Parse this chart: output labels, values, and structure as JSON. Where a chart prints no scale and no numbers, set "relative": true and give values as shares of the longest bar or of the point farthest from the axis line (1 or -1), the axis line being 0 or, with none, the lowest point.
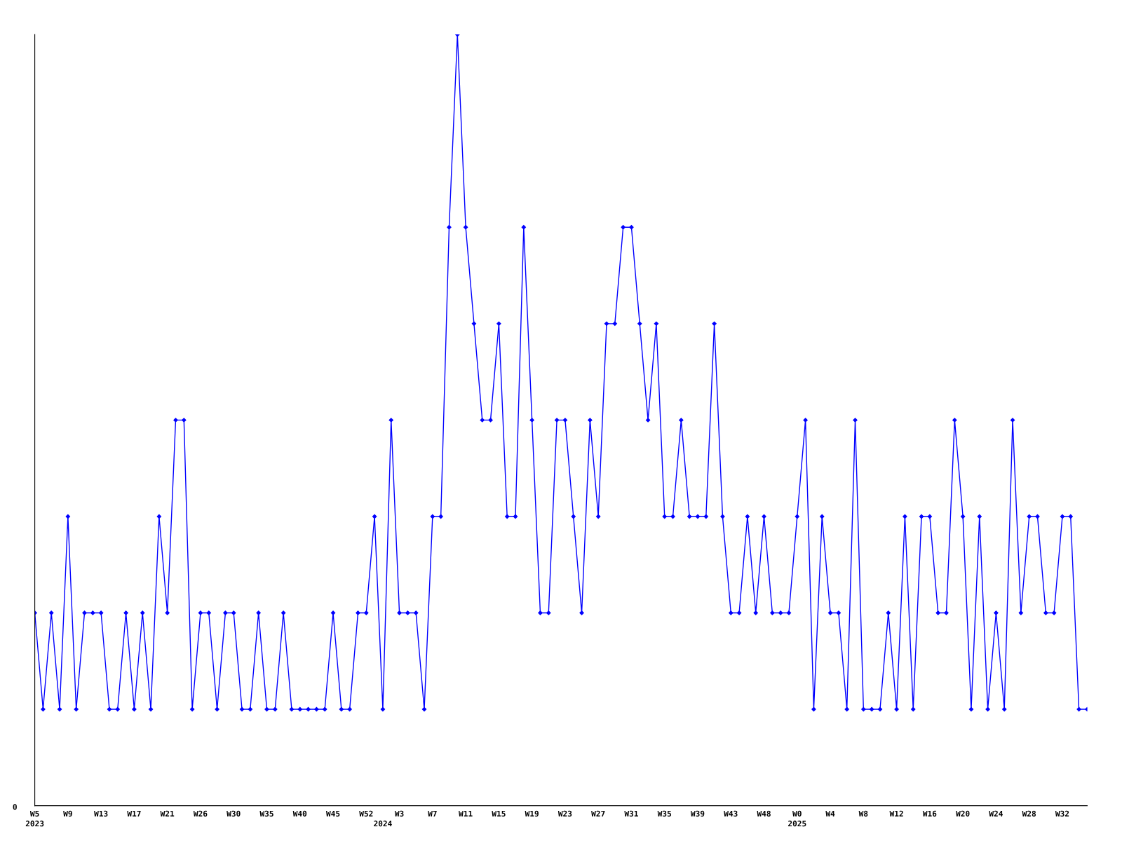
{
  "chart_data": {
    "type": "line",
    "relative": true,
    "color": "#0000ff",
    "marker": "diamond",
    "line_style": "solid",
    "grid": false,
    "legend": false,
    "annotations": [
      "0"
    ],
    "categories": [
      "W5\n2023",
      null,
      null,
      null,
      "W9",
      null,
      null,
      null,
      "W13",
      null,
      null,
      null,
      "W17",
      null,
      null,
      null,
      "W21",
      null,
      null,
      null,
      "W26",
      null,
      null,
      null,
      "W30",
      null,
      null,
      null,
      "W35",
      null,
      null,
      null,
      "W40",
      null,
      null,
      null,
      "W45",
      null,
      null,
      null,
      "W52",
      null,
      "\n2024",
      null,
      "W3",
      null,
      null,
      null,
      "W7",
      null,
      null,
      null,
      "W11",
      null,
      null,
      null,
      "W15",
      null,
      null,
      null,
      "W19",
      null,
      null,
      null,
      "W23",
      null,
      null,
      null,
      "W27",
      null,
      null,
      null,
      "W31",
      null,
      null,
      null,
      "W35",
      null,
      null,
      null,
      "W39",
      null,
      null,
      null,
      "W43",
      null,
      null,
      null,
      "W48",
      null,
      null,
      null,
      "W0\n2025",
      null,
      null,
      null,
      "W4",
      null,
      null,
      null,
      "W8",
      null,
      null,
      null,
      "W12",
      null,
      null,
      null,
      "W16",
      null,
      null,
      null,
      "W20",
      null,
      null,
      null,
      "W24",
      null,
      null,
      null,
      "W28",
      null,
      null,
      null,
      "W32",
      null,
      null,
      null
    ],
    "values": [
      0.25,
      0.125,
      0.25,
      0.125,
      0.375,
      0.125,
      0.25,
      0.25,
      0.25,
      0.125,
      0.125,
      0.25,
      0.125,
      0.25,
      0.125,
      0.375,
      0.25,
      0.5,
      0.5,
      0.125,
      0.25,
      0.25,
      0.125,
      0.25,
      0.25,
      0.125,
      0.125,
      0.25,
      0.125,
      0.125,
      0.25,
      0.125,
      0.125,
      0.125,
      0.125,
      0.125,
      0.25,
      0.125,
      0.125,
      0.25,
      0.25,
      0.375,
      0.125,
      0.5,
      0.25,
      0.25,
      0.25,
      0.125,
      0.375,
      0.375,
      0.75,
      1,
      0.75,
      0.625,
      0.5,
      0.5,
      0.625,
      0.375,
      0.375,
      0.75,
      0.5,
      0.25,
      0.25,
      0.5,
      0.5,
      0.375,
      0.25,
      0.5,
      0.375,
      0.625,
      0.625,
      0.75,
      0.75,
      0.625,
      0.5,
      0.625,
      0.375,
      0.375,
      0.5,
      0.375,
      0.375,
      0.375,
      0.625,
      0.375,
      0.25,
      0.25,
      0.375,
      0.25,
      0.375,
      0.25,
      0.25,
      0.25,
      0.375,
      0.5,
      0.125,
      0.375,
      0.25,
      0.25,
      0.125,
      0.5,
      0.125,
      0.125,
      0.125,
      0.25,
      0.125,
      0.375,
      0.125,
      0.375,
      0.375,
      0.25,
      0.25,
      0.5,
      0.375,
      0.125,
      0.375,
      0.125,
      0.25,
      0.125,
      0.5,
      0.25,
      0.375,
      0.375,
      0.25,
      0.25,
      0.375,
      0.375,
      0.125,
      0.125
    ]
  }
}
